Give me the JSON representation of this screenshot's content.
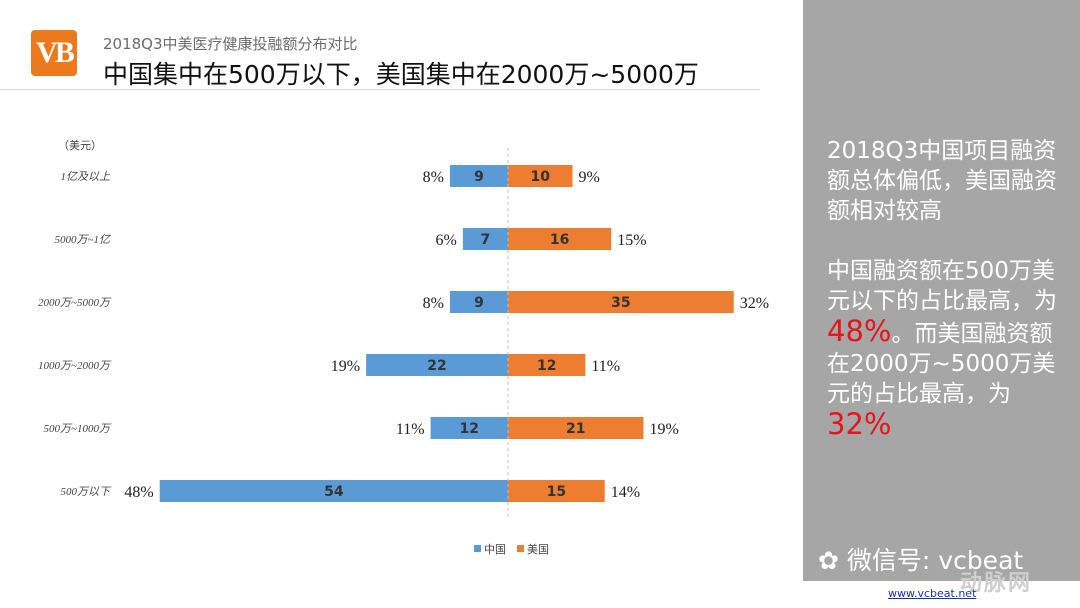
{
  "header": {
    "logo_text": "VB",
    "subtitle": "2018Q3中美医疗健康投融额分布对比",
    "title": "中国集中在500万以下，美国集中在2000万~5000万"
  },
  "chart_data": {
    "type": "bar",
    "orientation": "diverging-horizontal",
    "unit_label": "（美元）",
    "categories": [
      "1亿及以上",
      "5000万~1亿",
      "2000万~5000万",
      "1000万~2000万",
      "500万~1000万",
      "500万以下"
    ],
    "series": [
      {
        "name": "中国",
        "color": "#5b9bd5",
        "values": [
          9,
          7,
          9,
          22,
          12,
          54
        ],
        "percent_labels": [
          "8%",
          "6%",
          "8%",
          "19%",
          "11%",
          "48%"
        ]
      },
      {
        "name": "美国",
        "color": "#ed7d31",
        "values": [
          10,
          16,
          35,
          12,
          21,
          15
        ],
        "percent_labels": [
          "9%",
          "15%",
          "32%",
          "11%",
          "19%",
          "14%"
        ]
      }
    ],
    "legend_position": "bottom",
    "grid": false
  },
  "sidebar": {
    "heading": "2018Q3中国项目融资额总体偏低，美国融资额相对较高",
    "body_part1": "中国融资额在500万美元以下的占比最高，为",
    "highlight1": "48%",
    "body_part2": "。而美国融资额在2000万~5000万美元的占比最高，为",
    "highlight2": "32%"
  },
  "footer": {
    "wechat": "微信号: vcbeat",
    "watermark": "动脉网",
    "url": "www.vcbeat.net"
  },
  "colors": {
    "china": "#5b9bd5",
    "usa": "#ed7d31",
    "logo": "#ec7a1c",
    "sidebar": "#a6a6a6",
    "highlight": "#e8141b"
  }
}
